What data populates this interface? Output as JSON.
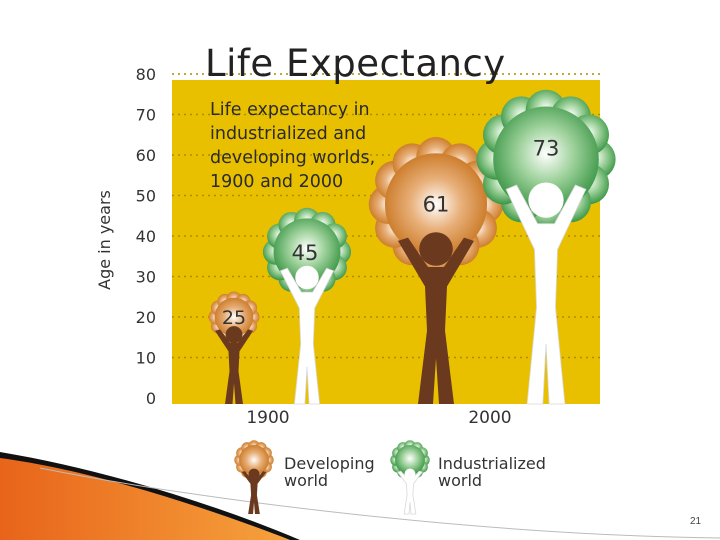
{
  "slide": {
    "number": "21"
  },
  "chart_data": {
    "type": "bar",
    "title": "Life Expectancy",
    "subtitle": "Life expectancy in\nindustrialized and\ndeveloping worlds,\n1900 and 2000",
    "ylabel": "Age in years",
    "xlabel": "",
    "ylim": [
      0,
      80
    ],
    "yticks": [
      "80",
      "70",
      "60",
      "50",
      "40",
      "30",
      "20",
      "10",
      "0"
    ],
    "categories": [
      "1900",
      "2000"
    ],
    "series": [
      {
        "name": "Developing world",
        "values": [
          25,
          61
        ],
        "labels": [
          "25",
          "61"
        ],
        "color": "#c8741e"
      },
      {
        "name": "Industrialized world",
        "values": [
          45,
          73
        ],
        "labels": [
          "45",
          "73"
        ],
        "color": "#2f8f3c"
      }
    ],
    "legend": {
      "position": "bottom",
      "entries": [
        {
          "line1": "Developing",
          "line2": "world"
        },
        {
          "line1": "Industrialized",
          "line2": "world"
        }
      ]
    },
    "plot_background": "#e8c000",
    "grid": true
  }
}
